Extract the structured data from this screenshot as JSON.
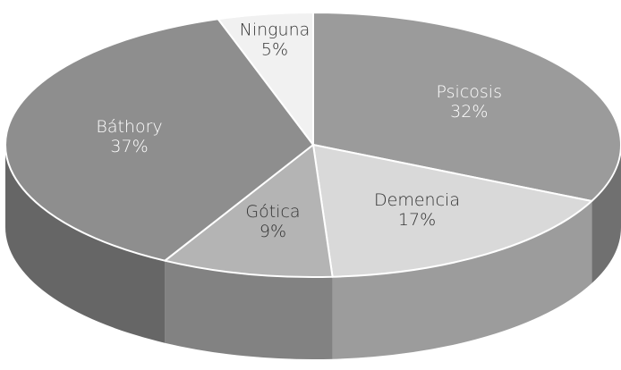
{
  "chart_data": {
    "type": "pie",
    "categories": [
      "Psicosis",
      "Demencia",
      "Gótica",
      "Báthory",
      "Ninguna"
    ],
    "values": [
      32,
      17,
      9,
      37,
      5
    ],
    "value_labels": [
      "32%",
      "17%",
      "9%",
      "37%",
      "5%"
    ],
    "colors": [
      "#9b9b9b",
      "#d9d9d9",
      "#b4b4b4",
      "#8e8e8e",
      "#f1f1f1"
    ],
    "label_colors": [
      "#ffffff",
      "#333333",
      "#333333",
      "#ffffff",
      "#333333"
    ]
  }
}
